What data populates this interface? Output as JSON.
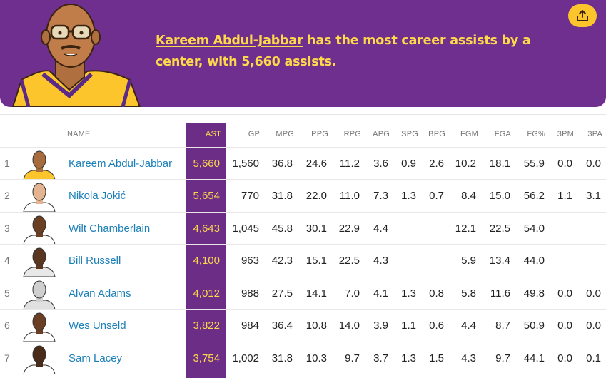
{
  "banner": {
    "player_name": "Kareem Abdul-Jabbar",
    "headline_rest": " has the most career assists by a center, with 5,660 assists.",
    "share_icon": "share-upload-icon",
    "colors": {
      "background": "#6f2f8e",
      "accent": "#fdd84b"
    }
  },
  "table": {
    "headers": {
      "name": "NAME",
      "ast": "AST",
      "gp": "GP",
      "mpg": "MPG",
      "ppg": "PPG",
      "rpg": "RPG",
      "apg": "APG",
      "spg": "SPG",
      "bpg": "BPG",
      "fgm": "FGM",
      "fga": "FGA",
      "fgp": "FG%",
      "tpm": "3PM",
      "tpa": "3PA"
    },
    "rows": [
      {
        "rank": "1",
        "name": "Kareem Abdul-Jabbar",
        "ast": "5,660",
        "gp": "1,560",
        "mpg": "36.8",
        "ppg": "24.6",
        "rpg": "11.2",
        "apg": "3.6",
        "spg": "0.9",
        "bpg": "2.6",
        "fgm": "10.2",
        "fga": "18.1",
        "fgp": "55.9",
        "tpm": "0.0",
        "tpa": "0.0"
      },
      {
        "rank": "2",
        "name": "Nikola Jokić",
        "ast": "5,654",
        "gp": "770",
        "mpg": "31.8",
        "ppg": "22.0",
        "rpg": "11.0",
        "apg": "7.3",
        "spg": "1.3",
        "bpg": "0.7",
        "fgm": "8.4",
        "fga": "15.0",
        "fgp": "56.2",
        "tpm": "1.1",
        "tpa": "3.1"
      },
      {
        "rank": "3",
        "name": "Wilt Chamberlain",
        "ast": "4,643",
        "gp": "1,045",
        "mpg": "45.8",
        "ppg": "30.1",
        "rpg": "22.9",
        "apg": "4.4",
        "spg": "",
        "bpg": "",
        "fgm": "12.1",
        "fga": "22.5",
        "fgp": "54.0",
        "tpm": "",
        "tpa": ""
      },
      {
        "rank": "4",
        "name": "Bill Russell",
        "ast": "4,100",
        "gp": "963",
        "mpg": "42.3",
        "ppg": "15.1",
        "rpg": "22.5",
        "apg": "4.3",
        "spg": "",
        "bpg": "",
        "fgm": "5.9",
        "fga": "13.4",
        "fgp": "44.0",
        "tpm": "",
        "tpa": ""
      },
      {
        "rank": "5",
        "name": "Alvan Adams",
        "ast": "4,012",
        "gp": "988",
        "mpg": "27.5",
        "ppg": "14.1",
        "rpg": "7.0",
        "apg": "4.1",
        "spg": "1.3",
        "bpg": "0.8",
        "fgm": "5.8",
        "fga": "11.6",
        "fgp": "49.8",
        "tpm": "0.0",
        "tpa": "0.0"
      },
      {
        "rank": "6",
        "name": "Wes Unseld",
        "ast": "3,822",
        "gp": "984",
        "mpg": "36.4",
        "ppg": "10.8",
        "rpg": "14.0",
        "apg": "3.9",
        "spg": "1.1",
        "bpg": "0.6",
        "fgm": "4.4",
        "fga": "8.7",
        "fgp": "50.9",
        "tpm": "0.0",
        "tpa": "0.0"
      },
      {
        "rank": "7",
        "name": "Sam Lacey",
        "ast": "3,754",
        "gp": "1,002",
        "mpg": "31.8",
        "ppg": "10.3",
        "rpg": "9.7",
        "apg": "3.7",
        "spg": "1.3",
        "bpg": "1.5",
        "fgm": "4.3",
        "fga": "9.7",
        "fgp": "44.1",
        "tpm": "0.0",
        "tpa": "0.1"
      }
    ]
  }
}
